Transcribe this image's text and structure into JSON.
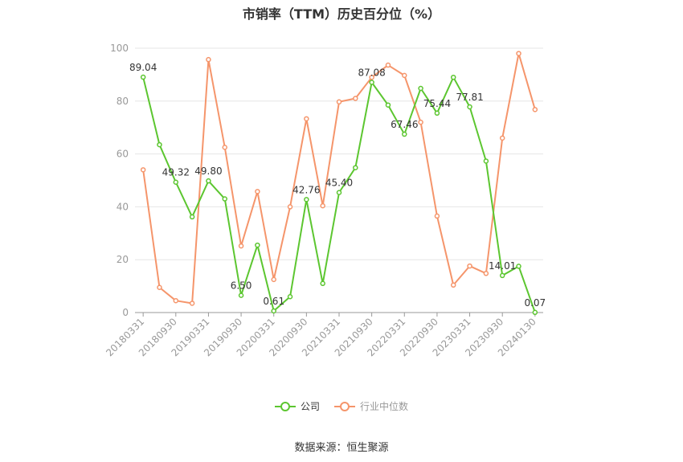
{
  "chart_data": {
    "type": "line",
    "title": "市销率（TTM）历史百分位（%）",
    "x": [
      "20180331",
      "20180630",
      "20180930",
      "20181231",
      "20190331",
      "20190630",
      "20190930",
      "20191231",
      "20200331",
      "20200630",
      "20200930",
      "20201231",
      "20210331",
      "20210630",
      "20210930",
      "20211231",
      "20220331",
      "20220630",
      "20220930",
      "20221231",
      "20230331",
      "20230630",
      "20230930",
      "20231231",
      "20240130"
    ],
    "x_tick_labels": [
      "20180331",
      "20180930",
      "20190331",
      "20190930",
      "20200331",
      "20200930",
      "20210331",
      "20210930",
      "20220331",
      "20220930",
      "20230331",
      "20230930",
      "20240130"
    ],
    "y_ticks": [
      "0",
      "20",
      "40",
      "60",
      "80",
      "100"
    ],
    "ylim": [
      0,
      100
    ],
    "grid": true,
    "legend_position": "bottom",
    "series": [
      {
        "name": "公司",
        "color": "#5cc630",
        "values": [
          89.04,
          63.5,
          49.32,
          36.2,
          49.8,
          43.0,
          6.5,
          25.5,
          0.61,
          6.0,
          42.76,
          11.0,
          45.4,
          54.8,
          87.08,
          78.5,
          67.46,
          84.8,
          75.44,
          89.0,
          77.81,
          57.3,
          14.01,
          17.5,
          0.07
        ],
        "data_labels": {
          "0": "89.04",
          "2": "49.32",
          "4": "49.80",
          "6": "6.50",
          "8": "0.61",
          "10": "42.76",
          "12": "45.40",
          "14": "87.08",
          "16": "67.46",
          "18": "75.44",
          "20": "77.81",
          "22": "14.01",
          "24": "0.07"
        }
      },
      {
        "name": "行业中位数",
        "color": "#f5956b",
        "values": [
          54.0,
          9.5,
          4.5,
          3.5,
          95.7,
          62.5,
          25.2,
          45.8,
          12.5,
          40.0,
          73.3,
          40.4,
          79.7,
          81.0,
          89.0,
          93.6,
          89.7,
          72.0,
          36.5,
          10.4,
          17.6,
          14.8,
          66.0,
          98.0,
          76.8
        ]
      }
    ]
  },
  "legend": [
    {
      "label": "公司",
      "color": "#5cc630",
      "muted": false
    },
    {
      "label": "行业中位数",
      "color": "#f5956b",
      "muted": true
    }
  ],
  "source": "数据来源：恒生聚源"
}
